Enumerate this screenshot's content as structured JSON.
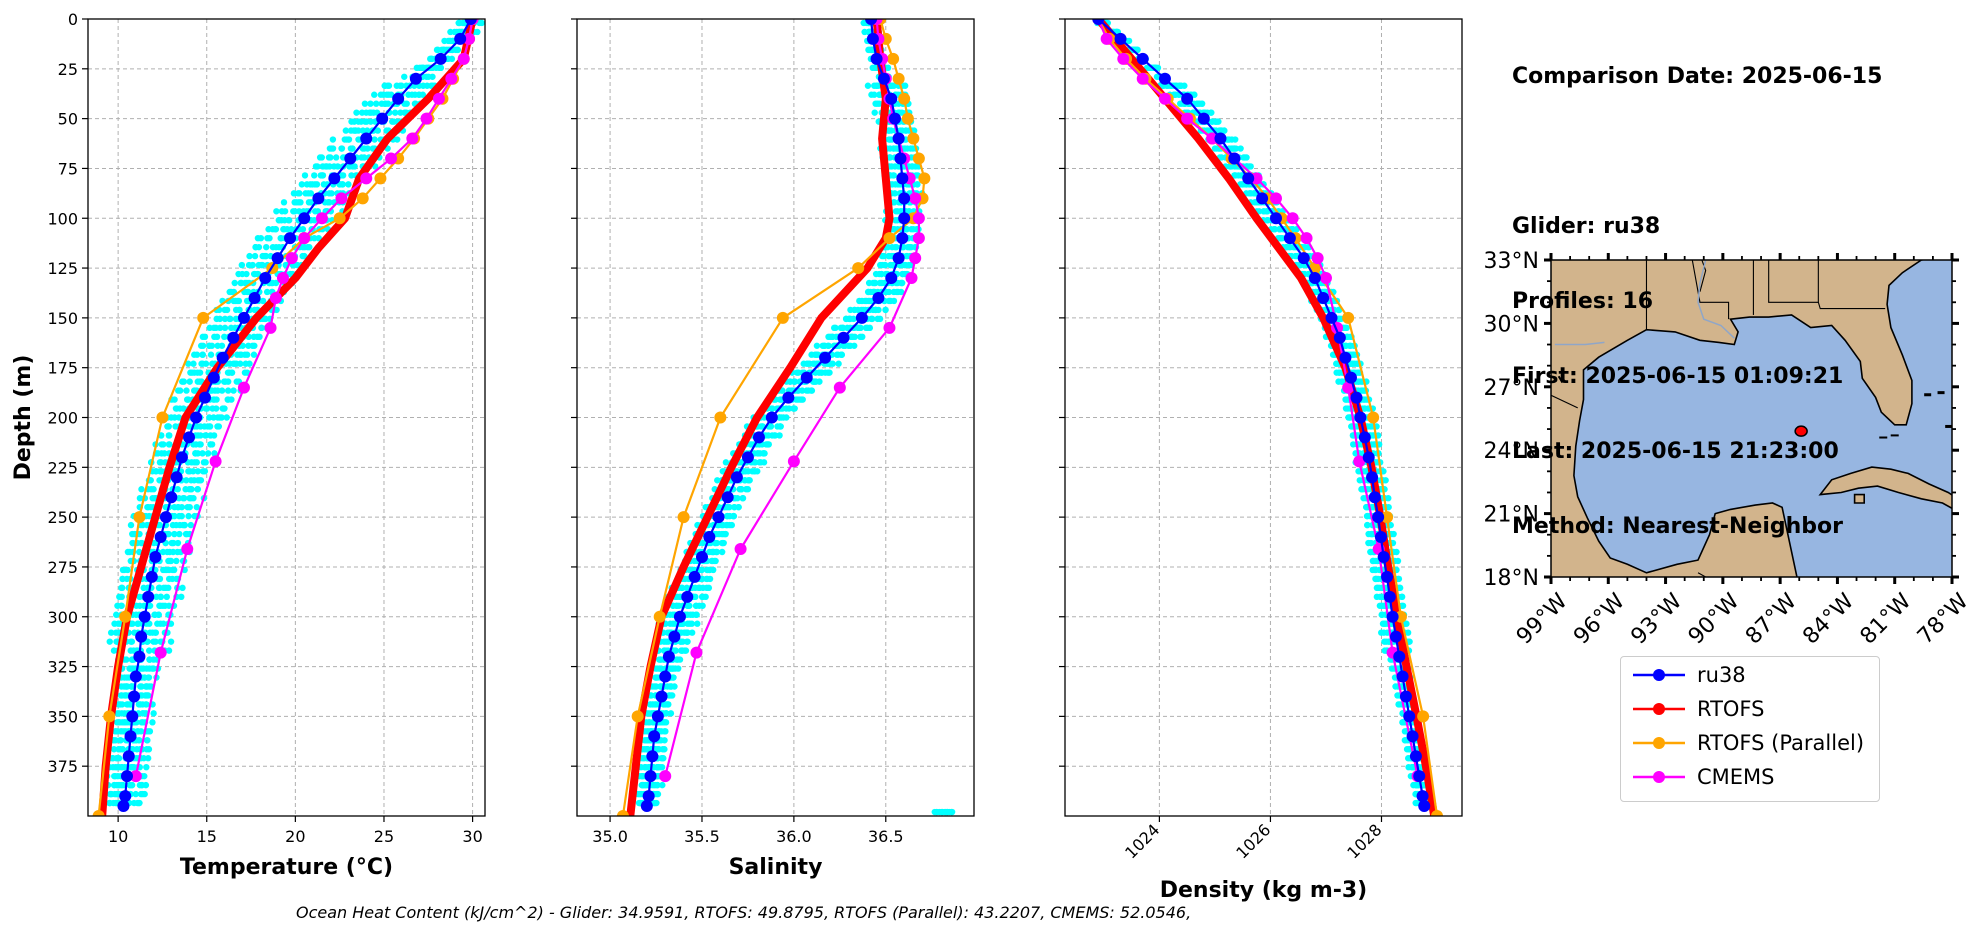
{
  "info": {
    "comparison_date": "Comparison Date: 2025-06-15",
    "glider": "Glider: ru38",
    "profiles": "Profiles: 16",
    "first": "First: 2025-06-15 01:09:21",
    "last": "Last: 2025-06-15 21:23:00",
    "method": "Method: Nearest-Neighbor"
  },
  "footer_text": "Ocean Heat Content (kJ/cm^2) - Glider: 34.9591,  RTOFS: 49.8795,  RTOFS (Parallel): 43.2207,  CMEMS: 52.0546,",
  "legend": [
    {
      "name": "ru38",
      "color": "#0000ff"
    },
    {
      "name": "RTOFS",
      "color": "#ff0000"
    },
    {
      "name": "RTOFS (Parallel)",
      "color": "#ffa500"
    },
    {
      "name": "CMEMS",
      "color": "#ff00ff"
    }
  ],
  "colors": {
    "glider_profiles": "#00ffff",
    "ru38": "#0000ff",
    "rtofs": "#ff0000",
    "rtofs_parallel": "#ffa500",
    "cmems": "#ff00ff",
    "land": "#d2b48c",
    "ocean": "#97b6e1",
    "grid": "#b0b0b0"
  },
  "chart_data": [
    {
      "type": "line",
      "xlabel": "Temperature (°C)",
      "ylabel": "Depth (m)",
      "xlim": [
        8.3,
        30.7
      ],
      "ylim": [
        400,
        0
      ],
      "xticks": [
        10,
        15,
        20,
        25,
        30
      ],
      "yticks": [
        0,
        25,
        50,
        75,
        100,
        125,
        150,
        175,
        200,
        225,
        250,
        275,
        300,
        325,
        350,
        375
      ],
      "grid": true,
      "series": [
        {
          "name": "ru38",
          "depth": [
            0,
            10,
            20,
            30,
            40,
            50,
            60,
            70,
            80,
            90,
            100,
            110,
            120,
            130,
            140,
            150,
            160,
            170,
            180,
            190,
            200,
            210,
            220,
            230,
            240,
            250,
            260,
            270,
            280,
            290,
            300,
            310,
            320,
            330,
            340,
            350,
            360,
            370,
            380,
            390,
            395
          ],
          "values": [
            29.9,
            29.3,
            28.2,
            26.8,
            25.8,
            24.9,
            24.0,
            23.1,
            22.2,
            21.3,
            20.5,
            19.7,
            19.0,
            18.3,
            17.7,
            17.1,
            16.5,
            15.9,
            15.4,
            14.9,
            14.4,
            14.0,
            13.6,
            13.3,
            13.0,
            12.7,
            12.4,
            12.1,
            11.9,
            11.7,
            11.5,
            11.3,
            11.2,
            11.0,
            10.9,
            10.8,
            10.7,
            10.6,
            10.5,
            10.4,
            10.3
          ]
        },
        {
          "name": "RTOFS",
          "depth": [
            0,
            20,
            40,
            60,
            80,
            100,
            115,
            130,
            150,
            175,
            200,
            225,
            250,
            275,
            300,
            325,
            350,
            375,
            400
          ],
          "values": [
            30.0,
            29.5,
            27.5,
            25.2,
            23.6,
            22.8,
            21.3,
            20.0,
            17.8,
            15.6,
            13.8,
            12.9,
            12.1,
            11.3,
            10.5,
            10.0,
            9.6,
            9.3,
            9.1
          ]
        },
        {
          "name": "RTOFS (Parallel)",
          "depth": [
            0,
            10,
            20,
            30,
            40,
            50,
            60,
            70,
            80,
            90,
            100,
            110,
            125,
            150,
            200,
            250,
            300,
            350,
            400
          ],
          "values": [
            30.0,
            29.8,
            29.5,
            28.9,
            28.3,
            27.5,
            26.7,
            25.8,
            24.8,
            23.8,
            22.5,
            20.5,
            18.7,
            14.8,
            12.5,
            11.2,
            10.4,
            9.5,
            8.9
          ]
        },
        {
          "name": "CMEMS",
          "depth": [
            0,
            10,
            20,
            30,
            40,
            50,
            60,
            70,
            80,
            90,
            100,
            110,
            120,
            130,
            140,
            155,
            185,
            222,
            266,
            318,
            380
          ],
          "values": [
            30.0,
            29.8,
            29.5,
            28.8,
            28.1,
            27.4,
            26.6,
            25.4,
            24.0,
            22.6,
            21.5,
            20.5,
            19.8,
            19.3,
            18.9,
            18.6,
            17.1,
            15.5,
            13.9,
            12.4,
            11.0
          ]
        }
      ]
    },
    {
      "type": "line",
      "xlabel": "Salinity",
      "ylabel": "",
      "xlim": [
        34.82,
        36.98
      ],
      "ylim": [
        400,
        0
      ],
      "xticks": [
        35.0,
        35.5,
        36.0,
        36.5
      ],
      "grid": true,
      "series": [
        {
          "name": "ru38",
          "depth": [
            0,
            10,
            20,
            30,
            40,
            50,
            60,
            70,
            80,
            90,
            100,
            110,
            120,
            130,
            140,
            150,
            160,
            170,
            180,
            190,
            200,
            210,
            220,
            230,
            240,
            250,
            260,
            270,
            280,
            290,
            300,
            310,
            320,
            330,
            340,
            350,
            360,
            370,
            380,
            390,
            395
          ],
          "values": [
            36.42,
            36.43,
            36.45,
            36.49,
            36.53,
            36.55,
            36.57,
            36.58,
            36.59,
            36.6,
            36.6,
            36.59,
            36.57,
            36.53,
            36.46,
            36.37,
            36.27,
            36.17,
            36.07,
            35.97,
            35.88,
            35.81,
            35.75,
            35.69,
            35.64,
            35.59,
            35.54,
            35.5,
            35.46,
            35.42,
            35.38,
            35.35,
            35.32,
            35.3,
            35.28,
            35.26,
            35.24,
            35.23,
            35.22,
            35.21,
            35.2
          ]
        },
        {
          "name": "RTOFS",
          "depth": [
            0,
            20,
            40,
            60,
            80,
            100,
            110,
            125,
            150,
            175,
            200,
            225,
            250,
            275,
            300,
            325,
            350,
            375,
            400
          ],
          "values": [
            36.45,
            36.47,
            36.5,
            36.48,
            36.5,
            36.52,
            36.5,
            36.4,
            36.15,
            35.98,
            35.8,
            35.66,
            35.53,
            35.4,
            35.28,
            35.22,
            35.17,
            35.14,
            35.11
          ]
        },
        {
          "name": "RTOFS (Parallel)",
          "depth": [
            0,
            10,
            20,
            30,
            40,
            50,
            60,
            70,
            80,
            90,
            100,
            110,
            125,
            150,
            200,
            250,
            300,
            350,
            400
          ],
          "values": [
            36.47,
            36.5,
            36.54,
            36.57,
            36.6,
            36.62,
            36.65,
            36.68,
            36.71,
            36.7,
            36.65,
            36.52,
            36.35,
            35.94,
            35.6,
            35.4,
            35.27,
            35.15,
            35.07
          ]
        },
        {
          "name": "CMEMS",
          "depth": [
            0,
            10,
            20,
            30,
            40,
            50,
            60,
            70,
            80,
            90,
            100,
            110,
            120,
            130,
            155,
            185,
            222,
            266,
            318,
            380
          ],
          "values": [
            36.45,
            36.46,
            36.48,
            36.5,
            36.52,
            36.54,
            36.57,
            36.6,
            36.63,
            36.66,
            36.68,
            36.68,
            36.66,
            36.64,
            36.52,
            36.25,
            36.0,
            35.71,
            35.47,
            35.3
          ]
        }
      ]
    },
    {
      "type": "line",
      "xlabel": "Density (kg m-3)",
      "ylabel": "",
      "xlim": [
        1022.3,
        1029.45
      ],
      "ylim": [
        400,
        0
      ],
      "xticks": [
        1024,
        1026,
        1028
      ],
      "grid": true,
      "series": [
        {
          "name": "ru38",
          "depth": [
            0,
            10,
            20,
            30,
            40,
            50,
            60,
            70,
            80,
            90,
            100,
            110,
            120,
            130,
            140,
            150,
            160,
            170,
            180,
            190,
            200,
            210,
            220,
            230,
            240,
            250,
            260,
            270,
            280,
            290,
            300,
            310,
            320,
            330,
            340,
            350,
            360,
            370,
            380,
            390,
            395
          ],
          "values": [
            1022.9,
            1023.3,
            1023.7,
            1024.1,
            1024.5,
            1024.8,
            1025.1,
            1025.35,
            1025.6,
            1025.85,
            1026.1,
            1026.35,
            1026.6,
            1026.8,
            1026.95,
            1027.1,
            1027.25,
            1027.35,
            1027.45,
            1027.55,
            1027.62,
            1027.7,
            1027.77,
            1027.83,
            1027.88,
            1027.94,
            1027.99,
            1028.04,
            1028.1,
            1028.15,
            1028.2,
            1028.26,
            1028.32,
            1028.38,
            1028.44,
            1028.5,
            1028.56,
            1028.62,
            1028.68,
            1028.74,
            1028.77
          ]
        },
        {
          "name": "RTOFS",
          "depth": [
            0,
            20,
            40,
            60,
            80,
            100,
            115,
            130,
            150,
            175,
            200,
            225,
            250,
            275,
            300,
            325,
            350,
            375,
            400
          ],
          "values": [
            1022.9,
            1023.5,
            1024.1,
            1024.7,
            1025.25,
            1025.75,
            1026.15,
            1026.55,
            1026.95,
            1027.35,
            1027.62,
            1027.82,
            1027.98,
            1028.12,
            1028.28,
            1028.45,
            1028.63,
            1028.8,
            1028.95
          ]
        },
        {
          "name": "RTOFS (Parallel)",
          "depth": [
            0,
            10,
            20,
            30,
            40,
            50,
            60,
            70,
            80,
            90,
            100,
            110,
            125,
            150,
            200,
            250,
            300,
            350,
            400
          ],
          "values": [
            1022.9,
            1023.1,
            1023.4,
            1023.75,
            1024.15,
            1024.55,
            1024.95,
            1025.3,
            1025.65,
            1025.95,
            1026.2,
            1026.45,
            1026.8,
            1027.4,
            1027.85,
            1028.1,
            1028.35,
            1028.75,
            1029.0
          ]
        },
        {
          "name": "CMEMS",
          "depth": [
            0,
            10,
            20,
            30,
            40,
            50,
            60,
            70,
            80,
            90,
            100,
            110,
            120,
            130,
            155,
            185,
            222,
            266,
            318,
            380
          ],
          "values": [
            1022.9,
            1023.05,
            1023.35,
            1023.7,
            1024.1,
            1024.5,
            1024.95,
            1025.35,
            1025.75,
            1026.1,
            1026.4,
            1026.65,
            1026.85,
            1027.0,
            1027.2,
            1027.4,
            1027.6,
            1027.95,
            1028.2,
            1028.65
          ]
        }
      ]
    }
  ],
  "map": {
    "xticklabels": [
      "99°W",
      "96°W",
      "93°W",
      "90°W",
      "87°W",
      "84°W",
      "81°W",
      "78°W"
    ],
    "yticklabels": [
      "33°N",
      "30°N",
      "27°N",
      "24°N",
      "21°N",
      "18°N"
    ],
    "lon_range": [
      -99,
      -78
    ],
    "lat_range": [
      18,
      33
    ],
    "glider_position": {
      "lon": -85.9,
      "lat": 24.9
    }
  }
}
